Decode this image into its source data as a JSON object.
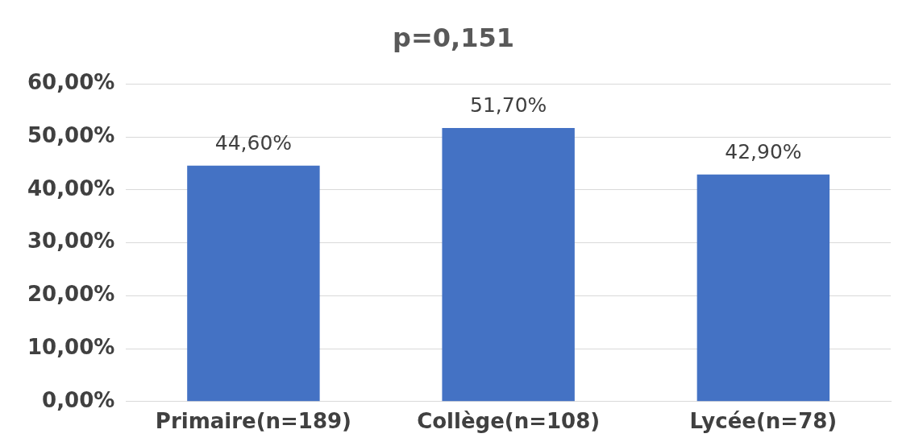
{
  "chart_data": {
    "type": "bar",
    "title": "p=0,151",
    "categories": [
      "Primaire(n=189)",
      "Collège(n=108)",
      "Lycée(n=78)"
    ],
    "values": [
      44.6,
      51.7,
      42.9
    ],
    "color": "#4472c4",
    "value_labels": [
      "44,60%",
      "51,70%",
      "42,90%"
    ],
    "ylim": [
      0,
      60
    ],
    "yticks": [
      {
        "value": 0,
        "label": "0,00%"
      },
      {
        "value": 10,
        "label": "10,00%"
      },
      {
        "value": 20,
        "label": "20,00%"
      },
      {
        "value": 30,
        "label": "30,00%"
      },
      {
        "value": 40,
        "label": "40,00%"
      },
      {
        "value": 50,
        "label": "50,00%"
      },
      {
        "value": 60,
        "label": "60,00%"
      }
    ],
    "grid": "y"
  }
}
